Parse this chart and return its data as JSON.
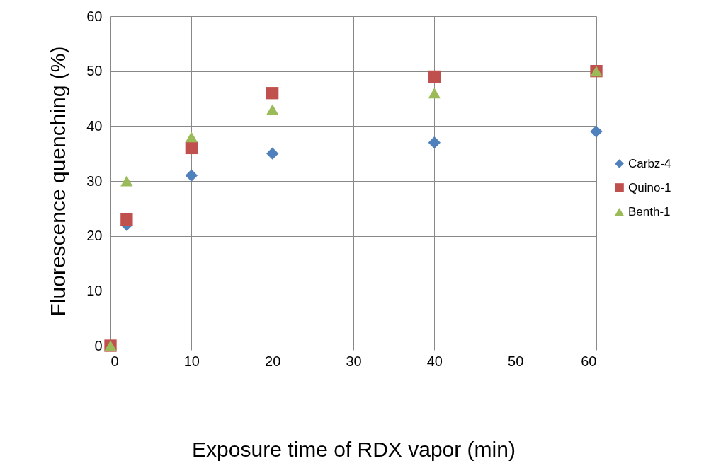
{
  "chart_data": {
    "type": "scatter",
    "xlabel": "Exposure time of RDX vapor (min)",
    "ylabel": "Fluorescence quenching (%)",
    "xlim": [
      0,
      60
    ],
    "xticks": [
      0,
      10,
      20,
      30,
      40,
      50,
      60
    ],
    "ylim": [
      0,
      60
    ],
    "yticks": [
      0,
      10,
      20,
      30,
      40,
      50,
      60
    ],
    "grid": true,
    "legend": "right",
    "x": [
      0,
      2,
      10,
      20,
      40,
      60
    ],
    "series": [
      {
        "name": "Carbz-4",
        "color": "#4f81bd",
        "marker": "diamond",
        "values": [
          null,
          22,
          31,
          35,
          37,
          39
        ]
      },
      {
        "name": "Quino-1",
        "color": "#c0504d",
        "marker": "square",
        "values": [
          0,
          23,
          36,
          46,
          49,
          50
        ]
      },
      {
        "name": "Benth-1",
        "color": "#9bbb59",
        "marker": "triangle",
        "values": [
          0,
          30,
          38,
          43,
          46,
          50
        ]
      }
    ]
  }
}
